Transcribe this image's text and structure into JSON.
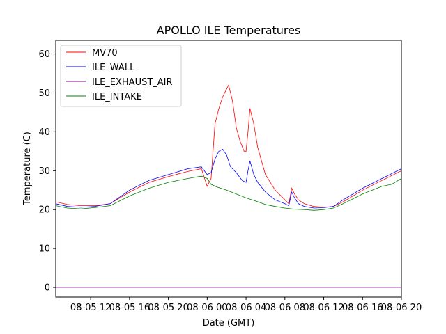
{
  "chart_data": {
    "type": "line",
    "title": "APOLLO ILE Temperatures",
    "xlabel": "Date (GMT)",
    "ylabel": "Temperature (C)",
    "xlim": [
      6.2,
      24.0
    ],
    "ylim": [
      -2.5,
      63.5
    ],
    "x_unit": "hours since 08-05 06:00 GMT",
    "yticks": [
      0,
      10,
      20,
      30,
      40,
      50,
      60
    ],
    "xticks": [
      {
        "x": 8,
        "label": "08-05 12"
      },
      {
        "x": 10,
        "label": "08-05 16"
      },
      {
        "x": 12,
        "label": "08-05 20"
      },
      {
        "x": 14,
        "label": "08-06 00"
      },
      {
        "x": 16,
        "label": "08-06 04"
      },
      {
        "x": 18,
        "label": "08-06 08"
      },
      {
        "x": 20,
        "label": "08-06 12"
      },
      {
        "x": 22,
        "label": "08-06 16"
      },
      {
        "x": 24,
        "label": "08-06 20"
      }
    ],
    "legend_position": "top-left",
    "series": [
      {
        "name": "MV70",
        "color": "#ff0000",
        "x": [
          6.2,
          6.8,
          7.5,
          8.2,
          9.0,
          10.0,
          11.0,
          12.0,
          13.0,
          13.7,
          14.0,
          14.2,
          14.4,
          14.6,
          14.8,
          15.0,
          15.1,
          15.3,
          15.5,
          15.7,
          15.9,
          16.0,
          16.1,
          16.2,
          16.4,
          16.6,
          17.0,
          17.5,
          18.0,
          18.2,
          18.35,
          18.5,
          18.7,
          19.0,
          19.5,
          20.0,
          20.5,
          21.0,
          22.0,
          23.0,
          24.0
        ],
        "y": [
          22.0,
          21.3,
          21.0,
          21.0,
          21.5,
          24.5,
          27.0,
          28.5,
          29.8,
          30.5,
          26.0,
          28.0,
          42.0,
          46.0,
          49.0,
          51.0,
          52.0,
          48.0,
          41.0,
          37.5,
          35.0,
          35.0,
          40.0,
          46.0,
          42.0,
          36.0,
          29.0,
          25.0,
          22.5,
          21.5,
          25.5,
          24.0,
          22.5,
          21.5,
          20.8,
          20.6,
          20.8,
          22.0,
          25.0,
          27.5,
          30.0
        ]
      },
      {
        "name": "ILE_WALL",
        "color": "#0000ff",
        "x": [
          6.2,
          6.8,
          7.5,
          8.2,
          9.0,
          10.0,
          11.0,
          12.0,
          13.0,
          13.7,
          14.0,
          14.2,
          14.4,
          14.6,
          14.8,
          15.0,
          15.2,
          15.5,
          15.8,
          16.0,
          16.1,
          16.2,
          16.4,
          16.6,
          17.0,
          17.5,
          18.0,
          18.2,
          18.35,
          18.5,
          18.7,
          19.0,
          19.5,
          20.0,
          20.5,
          21.0,
          22.0,
          23.0,
          24.0
        ],
        "y": [
          21.5,
          20.8,
          20.6,
          20.8,
          21.5,
          25.0,
          27.5,
          29.0,
          30.5,
          31.0,
          29.0,
          29.5,
          33.0,
          35.0,
          35.5,
          34.0,
          31.0,
          29.5,
          27.5,
          27.0,
          30.0,
          32.5,
          29.0,
          27.0,
          24.5,
          22.5,
          21.5,
          21.0,
          24.5,
          23.0,
          21.5,
          20.8,
          20.4,
          20.5,
          20.8,
          22.5,
          25.5,
          28.0,
          30.5
        ]
      },
      {
        "name": "ILE_EXHAUST_AIR",
        "color": "#800080",
        "x": [
          6.2,
          24.0
        ],
        "y": [
          0.0,
          0.0
        ]
      },
      {
        "name": "ILE_INTAKE",
        "color": "#008000",
        "x": [
          6.2,
          6.8,
          7.5,
          8.2,
          9.0,
          10.0,
          11.0,
          12.0,
          13.0,
          13.7,
          14.0,
          14.2,
          14.5,
          15.0,
          15.5,
          16.0,
          16.5,
          17.0,
          17.5,
          18.0,
          18.5,
          19.0,
          19.5,
          20.0,
          20.5,
          21.0,
          22.0,
          23.0,
          23.5,
          24.0
        ],
        "y": [
          21.0,
          20.4,
          20.2,
          20.5,
          21.0,
          23.5,
          25.5,
          27.0,
          28.0,
          28.6,
          28.0,
          26.5,
          25.8,
          25.0,
          24.0,
          23.0,
          22.2,
          21.3,
          20.8,
          20.4,
          20.1,
          20.0,
          19.8,
          20.0,
          20.4,
          21.5,
          24.0,
          26.0,
          26.5,
          28.0
        ]
      }
    ]
  }
}
